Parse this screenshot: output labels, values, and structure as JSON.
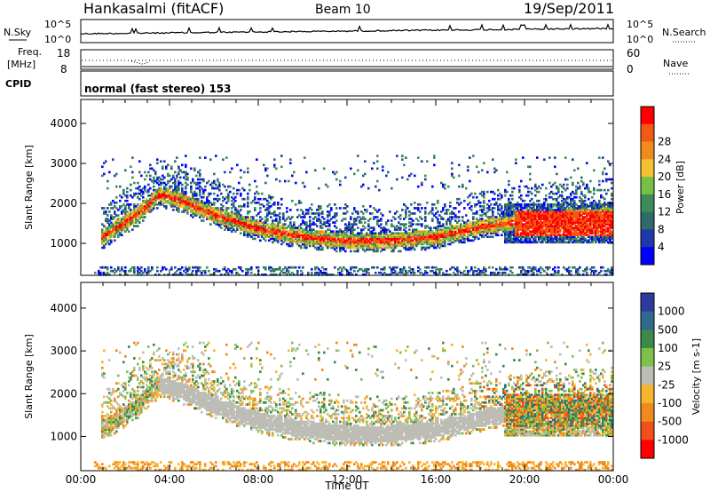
{
  "header": {
    "station": "Hankasalmi (fitACF)",
    "beam": "Beam 10",
    "date": "19/Sep/2011"
  },
  "top_panels": {
    "nsky_label": "N.Sky",
    "nsky_scale": [
      "10^5",
      "10^0"
    ],
    "nsearch_label": "N.Search",
    "freq_label": [
      "Freq.",
      "[MHz]"
    ],
    "freq_ticks": [
      "18",
      "8"
    ],
    "nave_label": "Nave",
    "nave_ticks": [
      "60",
      "0"
    ],
    "cpid_label": "CPID",
    "cpid_text": "normal (fast stereo) 153"
  },
  "colors": {
    "power": [
      "#0000ff",
      "#1f3aa8",
      "#2e6b6b",
      "#3c8c5a",
      "#76c043",
      "#f2c230",
      "#f08c1c",
      "#f25a14",
      "#ff0000"
    ],
    "velocity": [
      "#2b3a9c",
      "#2f6a8a",
      "#3c8a4a",
      "#7cc24a",
      "#bdbdb5",
      "#f7b52e",
      "#f08a1c",
      "#f2501a",
      "#ff0000"
    ]
  },
  "chart_data": [
    {
      "type": "heatmap",
      "name": "power",
      "xlabel": "",
      "ylabel": "Slant Range [km]",
      "x_ticks": [
        "00:00",
        "04:00",
        "08:00",
        "12:00",
        "16:00",
        "20:00",
        "00:00"
      ],
      "y_ticks": [
        "1000",
        "2000",
        "3000",
        "4000"
      ],
      "xlim_hours": [
        0,
        24
      ],
      "ylim_km": [
        200,
        4600
      ],
      "colorbar_label": "Power [dB]",
      "colorbar_ticks": [
        "4",
        "8",
        "12",
        "16",
        "20",
        "24",
        "28"
      ],
      "ridge_main": [
        [
          0.8,
          1100
        ],
        [
          1.5,
          1350
        ],
        [
          2.5,
          1700
        ],
        [
          3.5,
          2200
        ],
        [
          4.5,
          2050
        ],
        [
          6,
          1700
        ],
        [
          8,
          1350
        ],
        [
          10,
          1150
        ],
        [
          12,
          1050
        ],
        [
          14,
          1050
        ],
        [
          16,
          1150
        ],
        [
          18,
          1400
        ],
        [
          20,
          1550
        ],
        [
          22,
          1650
        ],
        [
          24,
          1700
        ]
      ]
    },
    {
      "type": "heatmap",
      "name": "velocity",
      "xlabel": "Time UT",
      "ylabel": "Slant Range [km]",
      "x_ticks": [
        "00:00",
        "04:00",
        "08:00",
        "12:00",
        "16:00",
        "20:00",
        "00:00"
      ],
      "y_ticks": [
        "1000",
        "2000",
        "3000",
        "4000"
      ],
      "xlim_hours": [
        0,
        24
      ],
      "ylim_km": [
        200,
        4600
      ],
      "colorbar_label": "Velocity [m s-1]",
      "colorbar_ticks": [
        "1000",
        "500",
        "100",
        "25",
        "-25",
        "-100",
        "-500",
        "-1000"
      ]
    }
  ]
}
